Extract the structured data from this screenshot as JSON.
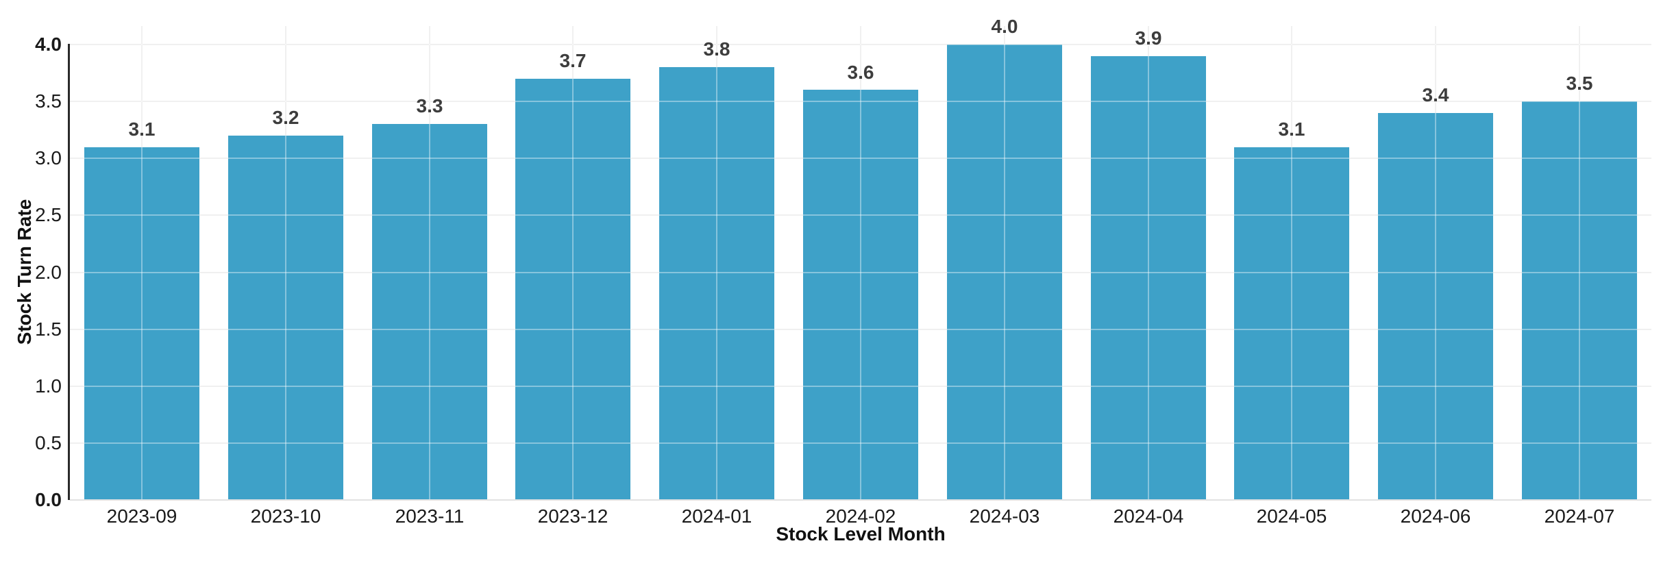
{
  "chart_data": {
    "type": "bar",
    "title": "",
    "xlabel": "Stock Level Month",
    "ylabel": "Stock Turn Rate",
    "categories": [
      "2023-09",
      "2023-10",
      "2023-11",
      "2023-12",
      "2024-01",
      "2024-02",
      "2024-03",
      "2024-04",
      "2024-05",
      "2024-06",
      "2024-07"
    ],
    "values": [
      3.1,
      3.2,
      3.3,
      3.7,
      3.8,
      3.6,
      4.0,
      3.9,
      3.1,
      3.4,
      3.5
    ],
    "bar_value_labels": [
      "3.1",
      "3.2",
      "3.3",
      "3.7",
      "3.8",
      "3.6",
      "4.0",
      "3.9",
      "3.1",
      "3.4",
      "3.5"
    ],
    "ytick_labels": [
      "0.0",
      "0.5",
      "1.0",
      "1.5",
      "2.0",
      "2.5",
      "3.0",
      "3.5",
      "4.0"
    ],
    "ytick_values": [
      0.0,
      0.5,
      1.0,
      1.5,
      2.0,
      2.5,
      3.0,
      3.5,
      4.0
    ],
    "ylim": [
      0,
      4.16
    ],
    "grid": true,
    "legend": false,
    "colors": {
      "bar": "#3ea1c8",
      "grid": "#e7e7e7",
      "axis_line": "#2a2a2a",
      "tick_label": "#1a1a1a",
      "bar_label": "#3d3d3d",
      "background": "#ffffff"
    }
  }
}
